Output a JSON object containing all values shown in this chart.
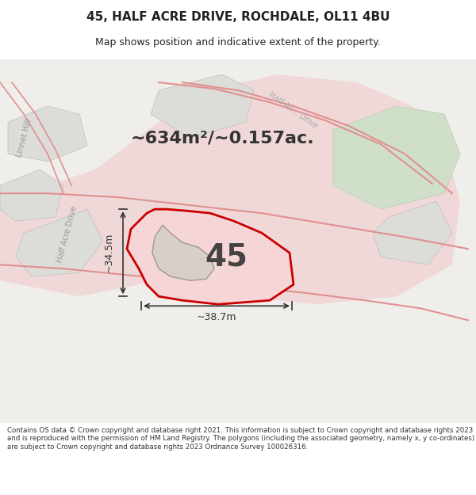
{
  "title_line1": "45, HALF ACRE DRIVE, ROCHDALE, OL11 4BU",
  "title_line2": "Map shows position and indicative extent of the property.",
  "area_text": "~634m²/~0.157ac.",
  "number_label": "45",
  "dim_width": "~38.7m",
  "dim_height": "~34.5m",
  "footer_text": "Contains OS data © Crown copyright and database right 2021. This information is subject to Crown copyright and database rights 2023 and is reproduced with the permission of HM Land Registry. The polygons (including the associated geometry, namely x, y co-ordinates) are subject to Crown copyright and database rights 2023 Ordnance Survey 100026316.",
  "bg_color": "#f5f5f0",
  "map_bg": "#f0eeea",
  "road_color": "#e8c8c8",
  "road_stroke": "#cc8888",
  "property_fill": "#f5d0d0",
  "property_stroke": "#cc0000",
  "building_fill": "#e8e0d8",
  "building_stroke": "#b8b0a8",
  "grass_color": "#d8e8d0",
  "text_color": "#222222",
  "footer_color": "#333333",
  "road_label_color": "#888888",
  "dim_line_color": "#333333"
}
